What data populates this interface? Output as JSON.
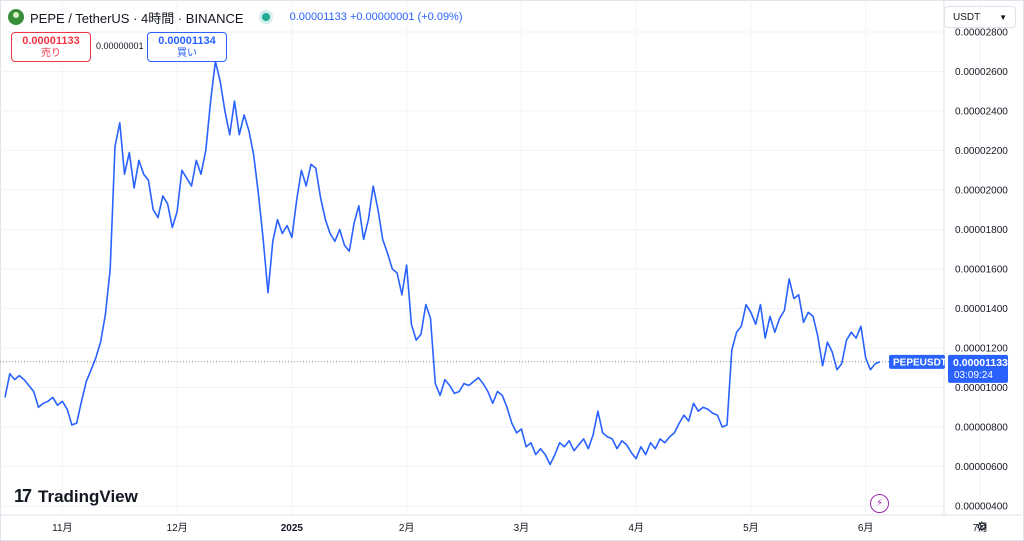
{
  "header": {
    "symbol": "PEPE / TetherUS · 4時間 · BINANCE",
    "price_readout": "0.00001133 +0.00000001 (+0.09%)"
  },
  "trade": {
    "sell_price": "0.00001133",
    "sell_label": "売り",
    "spread": "0.00000001",
    "buy_price": "0.00001134",
    "buy_label": "買い"
  },
  "currency": {
    "value": "USDT",
    "icon": "chevron-down-icon"
  },
  "brand": {
    "name": "TradingView"
  },
  "last_price_label": {
    "ticker": "PEPEUSDT",
    "price": "0.00001133",
    "countdown": "03:09:24"
  },
  "colors": {
    "line": "#2962ff",
    "label_bg": "#2962ff",
    "grid": "#f0f3fa",
    "accent_flash": "#9c27b0"
  },
  "chart_data": {
    "type": "line",
    "ylim": [
      3.8e-06,
      2.9e-06
    ],
    "yticks": [
      "0.00000400",
      "0.00000600",
      "0.00000800",
      "0.00001000",
      "0.00001200",
      "0.00001400",
      "0.00001600",
      "0.00001800",
      "0.00002000",
      "0.00002200",
      "0.00002400",
      "0.00002600",
      "0.00002800"
    ],
    "ytick_values": [
      4e-06,
      6e-06,
      8e-06,
      1e-05,
      1.2e-05,
      1.4e-05,
      1.6e-05,
      1.8e-05,
      2e-05,
      2.2e-05,
      2.4e-05,
      2.6e-05,
      2.8e-05
    ],
    "xticks": [
      "11月",
      "12月",
      "2025",
      "2月",
      "3月",
      "4月",
      "5月",
      "6月",
      "7月"
    ],
    "xtick_index": [
      12,
      36,
      60,
      84,
      108,
      132,
      156,
      180,
      204
    ],
    "series": [
      {
        "values": [
          9.5e-06,
          1.07e-05,
          1.04e-05,
          1.06e-05,
          1.04e-05,
          1.01e-05,
          9.8e-06,
          9e-06,
          9.2e-06,
          9.3e-06,
          9.5e-06,
          9.1e-06,
          9.3e-06,
          8.9e-06,
          8.1e-06,
          8.2e-06,
          9.3e-06,
          1.03e-05,
          1.09e-05,
          1.15e-05,
          1.23e-05,
          1.37e-05,
          1.6e-05,
          2.22e-05,
          2.34e-05,
          2.08e-05,
          2.19e-05,
          2.01e-05,
          2.15e-05,
          2.08e-05,
          2.05e-05,
          1.9e-05,
          1.86e-05,
          1.97e-05,
          1.93e-05,
          1.81e-05,
          1.89e-05,
          2.1e-05,
          2.06e-05,
          2.02e-05,
          2.15e-05,
          2.08e-05,
          2.2e-05,
          2.45e-05,
          2.65e-05,
          2.55e-05,
          2.4e-05,
          2.28e-05,
          2.45e-05,
          2.28e-05,
          2.38e-05,
          2.3e-05,
          2.18e-05,
          1.98e-05,
          1.75e-05,
          1.48e-05,
          1.74e-05,
          1.85e-05,
          1.78e-05,
          1.82e-05,
          1.76e-05,
          1.95e-05,
          2.1e-05,
          2.02e-05,
          2.13e-05,
          2.11e-05,
          1.96e-05,
          1.85e-05,
          1.78e-05,
          1.74e-05,
          1.8e-05,
          1.72e-05,
          1.69e-05,
          1.83e-05,
          1.92e-05,
          1.75e-05,
          1.85e-05,
          2.02e-05,
          1.9e-05,
          1.75e-05,
          1.68e-05,
          1.6e-05,
          1.58e-05,
          1.47e-05,
          1.62e-05,
          1.32e-05,
          1.24e-05,
          1.27e-05,
          1.42e-05,
          1.35e-05,
          1.02e-05,
          9.6e-06,
          1.04e-05,
          1.01e-05,
          9.7e-06,
          9.8e-06,
          1.02e-05,
          1.01e-05,
          1.03e-05,
          1.05e-05,
          1.02e-05,
          9.8e-06,
          9.2e-06,
          9.8e-06,
          9.6e-06,
          9e-06,
          8.2e-06,
          7.7e-06,
          7.9e-06,
          7e-06,
          7.2e-06,
          6.6e-06,
          6.9e-06,
          6.6e-06,
          6.1e-06,
          6.6e-06,
          7.2e-06,
          7e-06,
          7.3e-06,
          6.8e-06,
          7.1e-06,
          7.4e-06,
          6.9e-06,
          7.6e-06,
          8.8e-06,
          7.7e-06,
          7.5e-06,
          7.4e-06,
          6.9e-06,
          7.3e-06,
          7.1e-06,
          6.7e-06,
          6.4e-06,
          7e-06,
          6.6e-06,
          7.2e-06,
          6.9e-06,
          7.4e-06,
          7.2e-06,
          7.5e-06,
          7.7e-06,
          8.2e-06,
          8.6e-06,
          8.3e-06,
          9.2e-06,
          8.8e-06,
          9e-06,
          8.9e-06,
          8.7e-06,
          8.6e-06,
          8e-06,
          8.1e-06,
          1.19e-05,
          1.28e-05,
          1.31e-05,
          1.42e-05,
          1.38e-05,
          1.32e-05,
          1.42e-05,
          1.25e-05,
          1.36e-05,
          1.28e-05,
          1.35e-05,
          1.39e-05,
          1.55e-05,
          1.45e-05,
          1.47e-05,
          1.33e-05,
          1.38e-05,
          1.36e-05,
          1.26e-05,
          1.11e-05,
          1.23e-05,
          1.18e-05,
          1.09e-05,
          1.12e-05,
          1.24e-05,
          1.28e-05,
          1.25e-05,
          1.31e-05,
          1.15e-05,
          1.09e-05,
          1.12e-05,
          1.13e-05
        ]
      }
    ]
  }
}
